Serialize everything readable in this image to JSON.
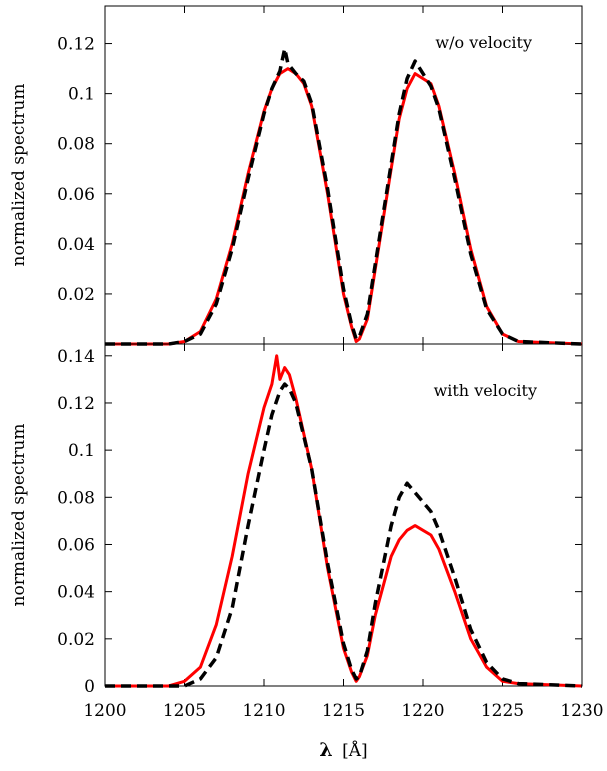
{
  "chart_data": [
    {
      "type": "line",
      "annotation": "w/o velocity",
      "ylabel": "normalized spectrum",
      "xlim": [
        1200,
        1230
      ],
      "ylim": [
        0,
        0.135
      ],
      "yticks": [
        "0.02",
        "0.04",
        "0.06",
        "0.08",
        "0.1",
        "0.12"
      ],
      "ytick_values": [
        0.02,
        0.04,
        0.06,
        0.08,
        0.1,
        0.12
      ],
      "series": [
        {
          "style": "solid",
          "color": "#ff0000",
          "x": [
            1200,
            1204,
            1205,
            1206,
            1207,
            1208,
            1209,
            1210,
            1210.5,
            1211,
            1211.5,
            1212,
            1212.5,
            1213,
            1214,
            1215,
            1215.5,
            1215.8,
            1216,
            1216.5,
            1217,
            1218,
            1218.5,
            1219,
            1219.5,
            1220,
            1220.5,
            1221,
            1222,
            1223,
            1224,
            1225,
            1226,
            1230
          ],
          "y": [
            0,
            0,
            0.001,
            0.005,
            0.018,
            0.04,
            0.068,
            0.093,
            0.102,
            0.108,
            0.11,
            0.108,
            0.104,
            0.095,
            0.06,
            0.02,
            0.007,
            0.001,
            0.002,
            0.01,
            0.03,
            0.07,
            0.09,
            0.102,
            0.108,
            0.106,
            0.104,
            0.095,
            0.068,
            0.038,
            0.015,
            0.004,
            0.001,
            0
          ]
        },
        {
          "style": "dashed",
          "color": "#000000",
          "x": [
            1200,
            1204,
            1205,
            1206,
            1207,
            1208,
            1209,
            1210,
            1210.5,
            1211,
            1211.3,
            1211.5,
            1212,
            1212.5,
            1213,
            1214,
            1215,
            1215.5,
            1215.8,
            1216,
            1216.5,
            1217,
            1218,
            1218.5,
            1219,
            1219.5,
            1220,
            1220.5,
            1221,
            1222,
            1223,
            1224,
            1225,
            1226,
            1230
          ],
          "y": [
            0,
            0,
            0.001,
            0.004,
            0.016,
            0.038,
            0.066,
            0.092,
            0.102,
            0.109,
            0.118,
            0.112,
            0.108,
            0.105,
            0.096,
            0.062,
            0.022,
            0.008,
            0.002,
            0.003,
            0.012,
            0.032,
            0.072,
            0.092,
            0.106,
            0.113,
            0.108,
            0.103,
            0.094,
            0.066,
            0.036,
            0.014,
            0.004,
            0.001,
            0
          ]
        }
      ]
    },
    {
      "type": "line",
      "annotation": "with velocity",
      "ylabel": "normalized spectrum",
      "xlabel_symbol": "λ",
      "xlabel_unit": "[Å]",
      "xlim": [
        1200,
        1230
      ],
      "ylim": [
        0,
        0.145
      ],
      "xticks": [
        "1200",
        "1205",
        "1210",
        "1215",
        "1220",
        "1225",
        "1230"
      ],
      "xtick_values": [
        1200,
        1205,
        1210,
        1215,
        1220,
        1225,
        1230
      ],
      "yticks": [
        "0",
        "0.02",
        "0.04",
        "0.06",
        "0.08",
        "0.1",
        "0.12",
        "0.14"
      ],
      "ytick_values": [
        0,
        0.02,
        0.04,
        0.06,
        0.08,
        0.1,
        0.12,
        0.14
      ],
      "series": [
        {
          "style": "solid",
          "color": "#ff0000",
          "x": [
            1200,
            1204,
            1205,
            1206,
            1207,
            1208,
            1209,
            1210,
            1210.5,
            1210.8,
            1211,
            1211.3,
            1211.6,
            1212,
            1213,
            1214,
            1215,
            1215.5,
            1215.8,
            1216,
            1216.5,
            1217,
            1218,
            1218.5,
            1219,
            1219.5,
            1220,
            1220.5,
            1221,
            1222,
            1223,
            1224,
            1225,
            1226,
            1230
          ],
          "y": [
            0,
            0,
            0.002,
            0.008,
            0.026,
            0.055,
            0.09,
            0.118,
            0.128,
            0.14,
            0.13,
            0.135,
            0.132,
            0.122,
            0.092,
            0.05,
            0.016,
            0.006,
            0.002,
            0.004,
            0.013,
            0.03,
            0.055,
            0.062,
            0.066,
            0.068,
            0.066,
            0.064,
            0.058,
            0.04,
            0.02,
            0.008,
            0.002,
            0.001,
            0
          ]
        },
        {
          "style": "dashed",
          "color": "#000000",
          "x": [
            1200,
            1205,
            1206,
            1207,
            1208,
            1209,
            1210,
            1210.5,
            1211,
            1211.3,
            1211.6,
            1212,
            1213,
            1214,
            1215,
            1215.5,
            1215.8,
            1216,
            1216.5,
            1217,
            1218,
            1218.5,
            1219,
            1219.5,
            1220,
            1220.5,
            1221,
            1222,
            1223,
            1224,
            1225,
            1226,
            1230
          ],
          "y": [
            0,
            0,
            0.003,
            0.012,
            0.033,
            0.068,
            0.1,
            0.115,
            0.125,
            0.128,
            0.126,
            0.12,
            0.092,
            0.052,
            0.018,
            0.007,
            0.003,
            0.004,
            0.015,
            0.035,
            0.068,
            0.08,
            0.086,
            0.082,
            0.078,
            0.074,
            0.066,
            0.046,
            0.024,
            0.01,
            0.003,
            0.001,
            0
          ]
        }
      ]
    }
  ]
}
